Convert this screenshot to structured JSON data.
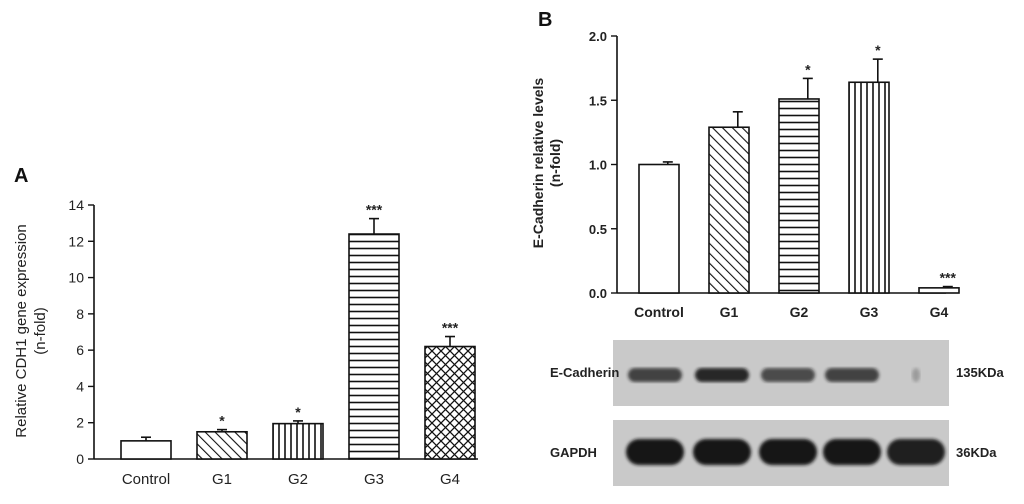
{
  "chart_data": [
    {
      "type": "bar",
      "panel": "A",
      "title": "",
      "xlabel": "",
      "ylabel_lines": [
        "Relative CDH1 gene expression",
        "(n-fold)"
      ],
      "categories": [
        "Control",
        "G1",
        "G2",
        "G3",
        "G4"
      ],
      "values": [
        1.0,
        1.5,
        1.95,
        12.4,
        6.2
      ],
      "errors": [
        0.2,
        0.12,
        0.15,
        0.85,
        0.55
      ],
      "significance": [
        "",
        "*",
        "*",
        "***",
        "***"
      ],
      "patterns": [
        "none",
        "diagonal",
        "vertical",
        "horizontal",
        "crosshatch"
      ],
      "ylim": [
        0,
        14
      ],
      "yticks": [
        0,
        2,
        4,
        6,
        8,
        10,
        12,
        14
      ],
      "grid": false
    },
    {
      "type": "bar",
      "panel": "B",
      "title": "",
      "xlabel": "",
      "ylabel_lines": [
        "E-Cadherin relative levels",
        "(n-fold)"
      ],
      "categories": [
        "Control",
        "G1",
        "G2",
        "G3",
        "G4"
      ],
      "values": [
        1.0,
        1.29,
        1.51,
        1.64,
        0.04
      ],
      "errors": [
        0.02,
        0.12,
        0.16,
        0.18,
        0.01
      ],
      "significance": [
        "",
        "",
        "*",
        "*",
        "***"
      ],
      "patterns": [
        "none",
        "diagonal",
        "horizontal",
        "vertical",
        "none"
      ],
      "ylim": [
        0,
        2.0
      ],
      "yticks": [
        "0.0",
        "0.5",
        "1.0",
        "1.5",
        "2.0"
      ],
      "grid": false
    }
  ],
  "blot": {
    "rows": [
      {
        "protein": "E-Cadherin",
        "size": "135KDa",
        "intensity": [
          0.75,
          0.9,
          0.7,
          0.75,
          0.03
        ]
      },
      {
        "protein": "GAPDH",
        "size": "36KDa",
        "intensity": [
          1.0,
          1.0,
          1.0,
          1.0,
          0.95
        ]
      }
    ]
  },
  "colors": {
    "ink": "#111111",
    "blot_bg": "#c9c9c9",
    "band": "#141414"
  }
}
